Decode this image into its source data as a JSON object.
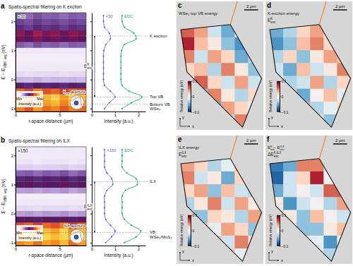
{
  "chart_data": [
    {
      "panel": "a",
      "type": "heatmap",
      "title": "Spatio-spectral filtering on K exciton",
      "xlabel": "r-space distance (µm)",
      "ylabel": [
        {
          "base": "E − E"
        },
        {
          "sub": "VBM, avg"
        },
        {
          "base": " (eV)"
        }
      ],
      "xlim": [
        0,
        8
      ],
      "ylim": [
        -1.1,
        2.3
      ],
      "xticks": [
        0,
        5
      ],
      "yticks": [
        -1,
        0,
        1,
        2
      ],
      "x": [
        0.5,
        1.5,
        2.5,
        3.5,
        4.5,
        5.5,
        6.5,
        7.5
      ],
      "y": [
        -1.0,
        -0.8,
        -0.6,
        -0.4,
        -0.2,
        0,
        0.2,
        0.4,
        0.6,
        0.8,
        1.0,
        1.2,
        1.4,
        1.6,
        1.8,
        2.0,
        2.2
      ],
      "cells": [
        [
          0.85,
          0.77,
          0.89,
          0.81,
          0.85,
          0.77,
          0.85,
          0.81
        ],
        [
          0.95,
          0.86,
          0.98,
          0.9,
          0.95,
          0.86,
          0.95,
          0.9
        ],
        [
          1.0,
          0.9,
          1.0,
          0.95,
          1.0,
          0.9,
          1.0,
          0.95
        ],
        [
          0.8,
          0.72,
          0.84,
          0.76,
          0.8,
          0.72,
          0.8,
          0.76
        ],
        [
          0.45,
          0.41,
          0.47,
          0.43,
          0.45,
          0.41,
          0.45,
          0.43
        ],
        [
          0.15,
          0.14,
          0.16,
          0.14,
          0.15,
          0.14,
          0.15,
          0.14
        ],
        [
          0.08,
          0.07,
          0.08,
          0.08,
          0.08,
          0.07,
          0.08,
          0.08
        ],
        [
          0.05,
          0.05,
          0.05,
          0.05,
          0.05,
          0.05,
          0.05,
          0.05
        ],
        [
          0.04,
          0.04,
          0.04,
          0.04,
          0.04,
          0.04,
          0.04,
          0.04
        ],
        [
          0.04,
          0.04,
          0.04,
          0.04,
          0.04,
          0.04,
          0.04,
          0.04
        ],
        [
          0.05,
          0.05,
          0.05,
          0.05,
          0.05,
          0.05,
          0.05,
          0.05
        ],
        [
          0.3,
          0.27,
          0.32,
          0.29,
          0.3,
          0.27,
          0.3,
          0.29
        ],
        [
          0.55,
          0.5,
          0.58,
          0.52,
          0.55,
          0.5,
          0.55,
          0.52
        ],
        [
          0.6,
          0.54,
          0.63,
          0.57,
          0.6,
          0.54,
          0.6,
          0.57
        ],
        [
          0.4,
          0.36,
          0.42,
          0.38,
          0.4,
          0.36,
          0.4,
          0.38
        ],
        [
          0.35,
          0.32,
          0.37,
          0.33,
          0.35,
          0.32,
          0.35,
          0.33
        ],
        [
          0.3,
          0.27,
          0.32,
          0.29,
          0.3,
          0.27,
          0.3,
          0.29
        ]
      ],
      "factor": "×30",
      "aperture": [
        {
          "base": "K"
        },
        {
          "sub": "exc"
        },
        {
          "base": " aperture"
        }
      ],
      "colorbar": {
        "label": "Intensity (a.u.)",
        "range": [
          0,
          1
        ],
        "ticks": [
          {
            "value": 0,
            "label": "Min"
          },
          {
            "value": 1,
            "label": "Max"
          }
        ]
      }
    },
    {
      "type": "line",
      "xlabel": "Intensity (a.u.)",
      "xlim": [
        0,
        2.3
      ],
      "xticks": [
        0,
        1,
        2
      ],
      "ylim": [
        -1.1,
        2.3
      ],
      "yticks": [
        -1,
        0,
        1,
        2
      ],
      "tick_labels": "x",
      "marker": "circle",
      "y": [
        -1.0,
        -0.8,
        -0.6,
        -0.4,
        -0.2,
        0,
        0.2,
        0.4,
        0.6,
        0.8,
        1.0,
        1.2,
        1.4,
        1.6,
        1.8,
        2.0,
        2.2
      ],
      "series": [
        {
          "name": "×30",
          "color": "#5b5fc7",
          "values": [
            0.55,
            0.75,
            1.0,
            0.8,
            0.55,
            0.5,
            0.5,
            0.5,
            0.5,
            0.5,
            0.52,
            0.6,
            0.8,
            0.75,
            0.55,
            0.5,
            0.5
          ]
        },
        {
          "name": "EDC",
          "color": "#19a974",
          "values": [
            1.3,
            1.7,
            2.15,
            1.6,
            1.3,
            1.25,
            1.25,
            1.25,
            1.25,
            1.25,
            1.28,
            1.4,
            1.9,
            1.8,
            1.4,
            1.3,
            1.3
          ]
        }
      ],
      "levels": [
        {
          "label": "K exciton",
          "value": 1.5
        },
        {
          "label": "Top VB",
          "value": -0.6
        },
        {
          "label": [
            "Bottom VB",
            "WSe₂"
          ],
          "value": -0.85
        }
      ],
      "gap_label": [
        {
          "base": "E"
        },
        {
          "sub": "exc"
        },
        {
          "sup": "K"
        }
      ]
    },
    {
      "panel": "b",
      "type": "heatmap",
      "title": "Spatio-spectral filtering on ILX",
      "xlabel": "r-space distance (µm)",
      "ylabel": [
        {
          "base": "E − E"
        },
        {
          "sub": "VBM, avg"
        },
        {
          "base": " (eV)"
        }
      ],
      "xlim": [
        0,
        8
      ],
      "ylim": [
        -1.1,
        2.3
      ],
      "xticks": [
        0,
        5
      ],
      "yticks": [
        -1,
        0,
        1,
        2
      ],
      "x": [
        0.5,
        1.5,
        2.5,
        3.5,
        4.5,
        5.5,
        6.5,
        7.5
      ],
      "y": [
        -1.0,
        -0.8,
        -0.6,
        -0.4,
        -0.2,
        0,
        0.2,
        0.4,
        0.6,
        0.8,
        1.0,
        1.2,
        1.4,
        1.6,
        1.8,
        2.0,
        2.2
      ],
      "cells": [
        [
          0.86,
          0.9,
          0.81,
          0.9,
          0.86,
          0.95,
          0.81,
          0.9
        ],
        [
          0.95,
          1.0,
          0.9,
          1.0,
          0.95,
          1.0,
          0.9,
          1.0
        ],
        [
          0.9,
          0.95,
          0.86,
          0.95,
          0.9,
          1.0,
          0.86,
          0.95
        ],
        [
          0.76,
          0.8,
          0.72,
          0.8,
          0.76,
          0.84,
          0.72,
          0.8
        ],
        [
          0.48,
          0.5,
          0.45,
          0.5,
          0.48,
          0.53,
          0.45,
          0.5
        ],
        [
          0.19,
          0.2,
          0.18,
          0.2,
          0.19,
          0.21,
          0.18,
          0.2
        ],
        [
          0.08,
          0.08,
          0.07,
          0.08,
          0.08,
          0.08,
          0.07,
          0.08
        ],
        [
          0.05,
          0.05,
          0.05,
          0.05,
          0.05,
          0.05,
          0.05,
          0.05
        ],
        [
          0.04,
          0.04,
          0.04,
          0.04,
          0.04,
          0.04,
          0.04,
          0.04
        ],
        [
          0.19,
          0.2,
          0.18,
          0.2,
          0.19,
          0.21,
          0.18,
          0.2
        ],
        [
          0.48,
          0.5,
          0.45,
          0.5,
          0.48,
          0.53,
          0.45,
          0.5
        ],
        [
          0.43,
          0.45,
          0.41,
          0.45,
          0.43,
          0.47,
          0.41,
          0.45
        ],
        [
          0.29,
          0.3,
          0.27,
          0.3,
          0.29,
          0.32,
          0.27,
          0.3
        ],
        [
          0.1,
          0.1,
          0.09,
          0.1,
          0.1,
          0.11,
          0.09,
          0.1
        ],
        [
          0.06,
          0.06,
          0.05,
          0.06,
          0.06,
          0.06,
          0.05,
          0.06
        ],
        [
          0.05,
          0.05,
          0.05,
          0.05,
          0.05,
          0.05,
          0.05,
          0.05
        ],
        [
          0.05,
          0.05,
          0.05,
          0.05,
          0.05,
          0.05,
          0.05,
          0.05
        ]
      ],
      "factor": "×150",
      "aperture": [
        {
          "base": "ILX aperture"
        }
      ],
      "colorbar": {
        "label": "Intensity (a.u.)",
        "range": [
          0,
          1
        ],
        "ticks": [
          {
            "value": 0,
            "label": "Min"
          },
          {
            "value": 1,
            "label": "Max"
          }
        ]
      }
    },
    {
      "type": "line",
      "xlabel": "Intensity (a.u.)",
      "xlim": [
        0,
        2.3
      ],
      "xticks": [
        0,
        1,
        2
      ],
      "ylim": [
        -1.1,
        2.3
      ],
      "yticks": [
        -1,
        0,
        1,
        2
      ],
      "tick_labels": "x",
      "marker": "circle",
      "y": [
        -1.0,
        -0.8,
        -0.6,
        -0.4,
        -0.2,
        0,
        0.2,
        0.4,
        0.6,
        0.8,
        1.0,
        1.2,
        1.4,
        1.6,
        1.8,
        2.0,
        2.2
      ],
      "series": [
        {
          "name": "×150",
          "color": "#5b5fc7",
          "values": [
            0.6,
            0.85,
            1.0,
            0.8,
            0.6,
            0.55,
            0.55,
            0.55,
            0.55,
            0.65,
            0.9,
            0.85,
            0.65,
            0.55,
            0.55,
            0.55,
            0.55
          ]
        },
        {
          "name": "EDC",
          "color": "#19a974",
          "values": [
            1.4,
            1.9,
            2.1,
            1.7,
            1.4,
            1.3,
            1.3,
            1.3,
            1.3,
            1.45,
            1.95,
            1.9,
            1.5,
            1.3,
            1.3,
            1.3,
            1.3
          ]
        }
      ],
      "levels": [
        {
          "label": "ILX",
          "value": 1.1
        },
        {
          "label": [
            "VB:",
            "WSe₂/MoS₂"
          ],
          "value": -0.65
        }
      ],
      "gap_label": [
        {
          "base": "E"
        },
        {
          "sub": "exc"
        },
        {
          "sup": "ILX"
        }
      ]
    },
    {
      "panel": "c",
      "type": "heatmap",
      "title": [
        {
          "base": "WSe₂ top VB energy"
        }
      ],
      "scale_bar": "2 µm",
      "axes": [
        "x",
        "y"
      ],
      "colorbar": {
        "label": "Relative energy (eV)",
        "range": [
          -0.1,
          0.1
        ],
        "ticks": [
          {
            "value": -0.1,
            "label": "−0.1"
          },
          0,
          0.1
        ]
      },
      "cells": [
        [
          0.06,
          0.04,
          -0.02,
          -0.05,
          0.0,
          0.02
        ],
        [
          0.08,
          0.03,
          0.01,
          -0.04,
          -0.06,
          0.01
        ],
        [
          0.05,
          -0.02,
          0.04,
          0.02,
          -0.05,
          -0.03
        ],
        [
          0.02,
          0.03,
          -0.03,
          0.05,
          0.01,
          -0.04
        ],
        [
          -0.01,
          0.06,
          0.02,
          -0.02,
          0.04,
          -0.02
        ],
        [
          0.03,
          -0.04,
          0.05,
          0.01,
          -0.03,
          0.02
        ],
        [
          0.0,
          0.02,
          -0.05,
          0.04,
          0.02,
          -0.01
        ],
        [
          0.01,
          -0.02,
          0.03,
          -0.03,
          0.05,
          0.0
        ]
      ]
    },
    {
      "panel": "d",
      "type": "heatmap",
      "title": [
        {
          "base": "K-exciton energy"
        }
      ],
      "label": [
        {
          "base": "E"
        },
        {
          "sub": "exc"
        },
        {
          "sup": "K"
        }
      ],
      "scale_bar": "2 µm",
      "axes": [
        "x",
        "y"
      ],
      "colorbar": {
        "label": "Relative energy (eV)",
        "range": [
          -0.1,
          0.1
        ],
        "ticks": [
          {
            "value": -0.1,
            "label": "−0.1"
          },
          0,
          0.1
        ]
      },
      "cells": [
        [
          -0.05,
          -0.03,
          0.02,
          0.04,
          0.01,
          -0.02
        ],
        [
          -0.06,
          -0.04,
          0.03,
          0.05,
          0.02,
          0.0
        ],
        [
          -0.03,
          0.02,
          -0.04,
          0.01,
          0.04,
          0.03
        ],
        [
          -0.02,
          -0.05,
          0.03,
          -0.02,
          0.01,
          0.05
        ],
        [
          0.01,
          -0.03,
          -0.02,
          0.04,
          -0.03,
          0.02
        ],
        [
          -0.04,
          0.03,
          -0.05,
          0.0,
          0.03,
          -0.01
        ],
        [
          0.02,
          -0.02,
          0.04,
          -0.03,
          -0.01,
          0.02
        ],
        [
          -0.01,
          0.03,
          -0.02,
          0.02,
          -0.04,
          0.01
        ]
      ]
    },
    {
      "panel": "e",
      "type": "heatmap",
      "title": [
        {
          "base": "ILX energy"
        }
      ],
      "label": [
        {
          "base": "E"
        },
        {
          "sub": "exc"
        },
        {
          "sup": "ILX"
        }
      ],
      "scale_bar": "2 µm",
      "axes": [
        "x",
        "y"
      ],
      "colorbar": {
        "label": "Relative energy (eV)",
        "range": [
          -0.1,
          0.1
        ],
        "ticks": [
          {
            "value": -0.1,
            "label": "−0.1"
          },
          0,
          0.1
        ]
      },
      "cells": [
        [
          0.04,
          0.02,
          -0.03,
          -0.01,
          0.03,
          0.0
        ],
        [
          0.05,
          -0.02,
          0.01,
          -0.05,
          0.02,
          0.03
        ],
        [
          0.02,
          0.04,
          -0.04,
          0.03,
          -0.02,
          -0.03
        ],
        [
          -0.03,
          0.01,
          0.05,
          -0.02,
          0.04,
          0.01
        ],
        [
          0.03,
          -0.04,
          0.02,
          0.01,
          -0.03,
          0.04
        ],
        [
          -0.02,
          0.03,
          -0.01,
          0.04,
          0.02,
          -0.04
        ],
        [
          0.01,
          -0.03,
          0.03,
          -0.02,
          0.05,
          0.02
        ],
        [
          0.02,
          0.01,
          -0.04,
          0.03,
          -0.01,
          0.03
        ]
      ]
    },
    {
      "panel": "f",
      "type": "heatmap",
      "title": [
        {
          "base": "E"
        },
        {
          "sub": "exc"
        },
        {
          "sup": "K"
        },
        {
          "base": " − E"
        },
        {
          "sub": "exc"
        },
        {
          "sup": "ILX"
        }
      ],
      "label": [
        {
          "base": "ΔE"
        },
        {
          "sub": "exc"
        },
        {
          "sup": "K,ILX"
        }
      ],
      "scale_bar": "2 µm",
      "axes": [
        "x",
        "y"
      ],
      "colorbar": {
        "label": "Relative energy (eV)",
        "range": [
          -0.1,
          0.1
        ],
        "ticks": [
          {
            "value": -0.1,
            "label": "−0.1"
          },
          0,
          0.1
        ]
      },
      "cells": [
        [
          -0.07,
          -0.05,
          0.05,
          0.05,
          -0.02,
          -0.02
        ],
        [
          -0.08,
          -0.02,
          0.02,
          0.08,
          0.0,
          -0.03
        ],
        [
          -0.05,
          -0.02,
          0.0,
          -0.02,
          0.06,
          0.06
        ],
        [
          0.01,
          -0.06,
          -0.02,
          0.0,
          -0.03,
          0.04
        ],
        [
          -0.02,
          0.01,
          -0.04,
          0.03,
          0.0,
          -0.02
        ],
        [
          -0.02,
          0.0,
          -0.04,
          -0.04,
          0.01,
          0.03
        ],
        [
          0.01,
          0.01,
          0.01,
          -0.01,
          -0.06,
          0.0
        ],
        [
          -0.03,
          0.02,
          0.02,
          -0.01,
          -0.03,
          -0.02
        ]
      ]
    }
  ]
}
